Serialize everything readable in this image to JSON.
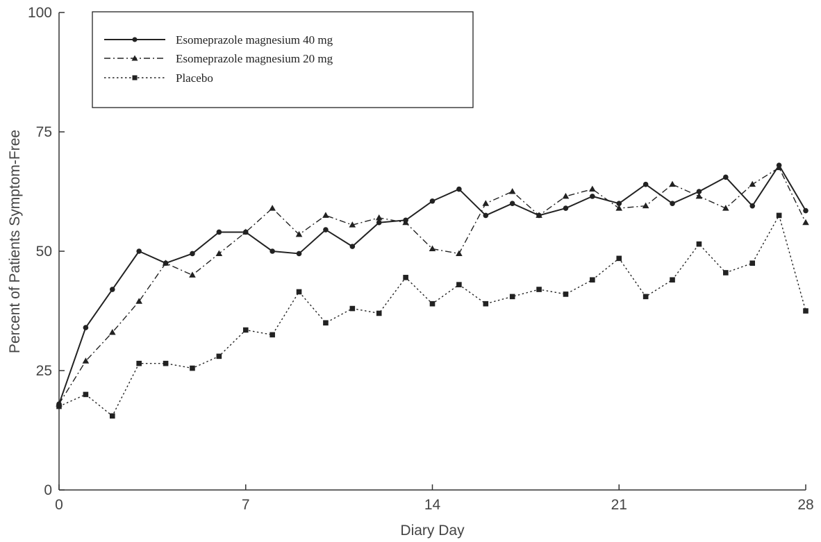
{
  "chart_data": {
    "type": "line",
    "xlabel": "Diary Day",
    "ylabel": "Percent of Patients Symptom-Free",
    "xlim": [
      0,
      28
    ],
    "ylim": [
      0,
      100
    ],
    "xticks": [
      0,
      7,
      14,
      21,
      28
    ],
    "yticks": [
      0,
      25,
      50,
      75,
      100
    ],
    "xtick_labels": [
      "0",
      "7",
      "14",
      "21",
      "28"
    ],
    "ytick_labels": [
      "0",
      "25",
      "50",
      "75",
      "100"
    ],
    "grid": false,
    "legend_position": "top-left",
    "x": [
      0,
      1,
      2,
      3,
      4,
      5,
      6,
      7,
      8,
      9,
      10,
      11,
      12,
      13,
      14,
      15,
      16,
      17,
      18,
      19,
      20,
      21,
      22,
      23,
      24,
      25,
      26,
      27,
      28
    ],
    "series": [
      {
        "name": "Esomeprazole magnesium 40 mg",
        "marker": "circle",
        "line_style": "solid",
        "values": [
          18,
          34,
          42,
          50,
          47.5,
          49.5,
          54,
          54,
          50,
          49.5,
          54.5,
          51,
          56,
          56.5,
          60.5,
          63,
          57.5,
          60,
          57.5,
          59,
          61.5,
          60,
          64,
          60,
          62.5,
          65.5,
          59.5,
          68,
          58.5
        ]
      },
      {
        "name": "Esomeprazole magnesium 20 mg",
        "marker": "triangle",
        "line_style": "dashdot",
        "values": [
          18,
          27,
          33,
          39.5,
          47.5,
          45,
          49.5,
          54,
          59,
          53.5,
          57.5,
          55.5,
          57,
          56,
          50.5,
          49.5,
          60,
          62.5,
          57.5,
          61.5,
          63,
          59,
          59.5,
          64,
          61.5,
          59,
          64,
          67.5,
          56
        ]
      },
      {
        "name": "Placebo",
        "marker": "square",
        "line_style": "dotted",
        "values": [
          17.5,
          20,
          15.5,
          26.5,
          26.5,
          25.5,
          28,
          33.5,
          32.5,
          41.5,
          35,
          38,
          37,
          44.5,
          39,
          43,
          39,
          40.5,
          42,
          41,
          44,
          48.5,
          40.5,
          44,
          51.5,
          45.5,
          47.5,
          57.5,
          37.5
        ]
      }
    ]
  }
}
